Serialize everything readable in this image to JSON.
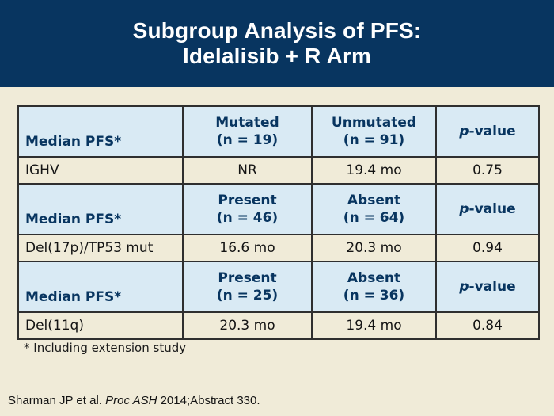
{
  "slide": {
    "title_line1": "Subgroup Analysis of PFS:",
    "title_line2": "Idelalisib + R Arm",
    "footnote": "* Including extension study",
    "citation": {
      "pre": "Sharman JP et al. ",
      "italic": "Proc ASH",
      "post": " 2014;Abstract 330."
    }
  },
  "colors": {
    "title_band_navy": "#083560",
    "header_cell_blue": "#d9eaf4",
    "background_cream": "#f0ebd8",
    "border_dark": "#2f2f2f",
    "header_text_navy": "#083560",
    "body_text": "#141414"
  },
  "table": {
    "sections": [
      {
        "header": {
          "label": "Median PFS*",
          "col2_line1": "Mutated",
          "col2_line2": "(n = 19)",
          "col3_line1": "Unmutated",
          "col3_line2": "(n = 91)",
          "p_italic": "p",
          "p_rest": "-value"
        },
        "row": {
          "label": "IGHV",
          "col2": "NR",
          "col3": "19.4 mo",
          "p": "0.75"
        }
      },
      {
        "header": {
          "label": "Median PFS*",
          "col2_line1": "Present",
          "col2_line2": "(n = 46)",
          "col3_line1": "Absent",
          "col3_line2": "(n = 64)",
          "p_italic": "p",
          "p_rest": "-value"
        },
        "row": {
          "label": "Del(17p)/TP53 mut",
          "col2": "16.6 mo",
          "col3": "20.3 mo",
          "p": "0.94"
        }
      },
      {
        "header": {
          "label": "Median PFS*",
          "col2_line1": "Present",
          "col2_line2": "(n = 25)",
          "col3_line1": "Absent",
          "col3_line2": "(n = 36)",
          "p_italic": "p",
          "p_rest": "-value"
        },
        "row": {
          "label": "Del(11q)",
          "col2": "20.3 mo",
          "col3": "19.4 mo",
          "p": "0.84"
        }
      }
    ]
  }
}
